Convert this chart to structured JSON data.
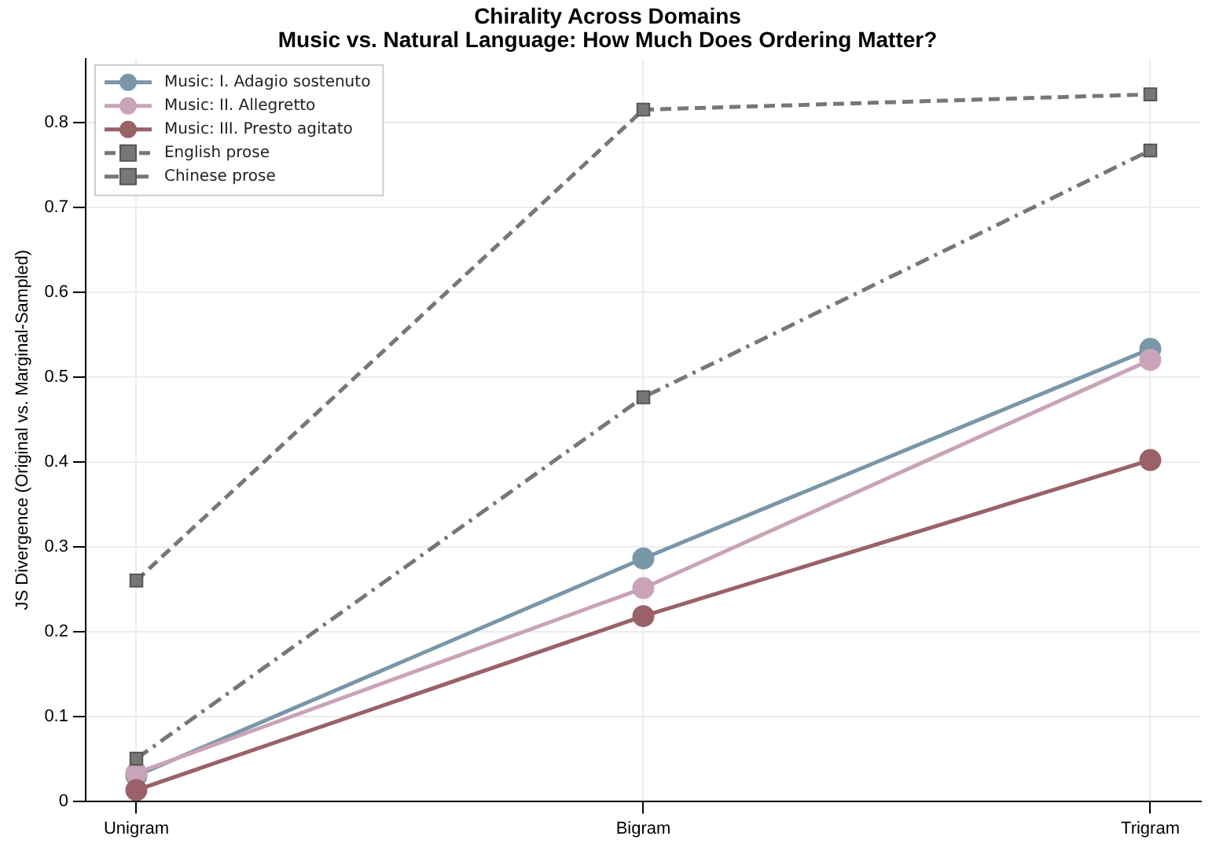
{
  "chart_data": {
    "type": "line",
    "title": "Chirality Across Domains",
    "subtitle": "Music vs. Natural Language: How Much Does Ordering Matter?",
    "ylabel": "JS Divergence (Original vs. Marginal-Sampled)",
    "categories": [
      "Unigram",
      "Bigram",
      "Trigram"
    ],
    "series": [
      {
        "name": "Music: I. Adagio sostenuto",
        "color": "#7a97a8",
        "values": [
          0.03,
          0.286,
          0.533
        ],
        "marker": "circle",
        "line_style": "solid"
      },
      {
        "name": "Music: II. Allegretto",
        "color": "#c9a3b8",
        "values": [
          0.033,
          0.251,
          0.52
        ],
        "marker": "circle",
        "line_style": "solid"
      },
      {
        "name": "Music: III. Presto agitato",
        "color": "#9a6168",
        "values": [
          0.013,
          0.218,
          0.402
        ],
        "marker": "circle",
        "line_style": "solid"
      },
      {
        "name": "English prose",
        "color": "#777777",
        "values": [
          0.26,
          0.815,
          0.833
        ],
        "marker": "square",
        "line_style": "dashed"
      },
      {
        "name": "Chinese prose",
        "color": "#777777",
        "values": [
          0.05,
          0.476,
          0.767
        ],
        "marker": "square",
        "line_style": "dashdot"
      }
    ],
    "ylim": [
      0,
      0.875
    ],
    "yticks": [
      0,
      0.1,
      0.2,
      0.3,
      0.4,
      0.5,
      0.6,
      0.7,
      0.8
    ],
    "grid": true,
    "legend": "top left"
  }
}
